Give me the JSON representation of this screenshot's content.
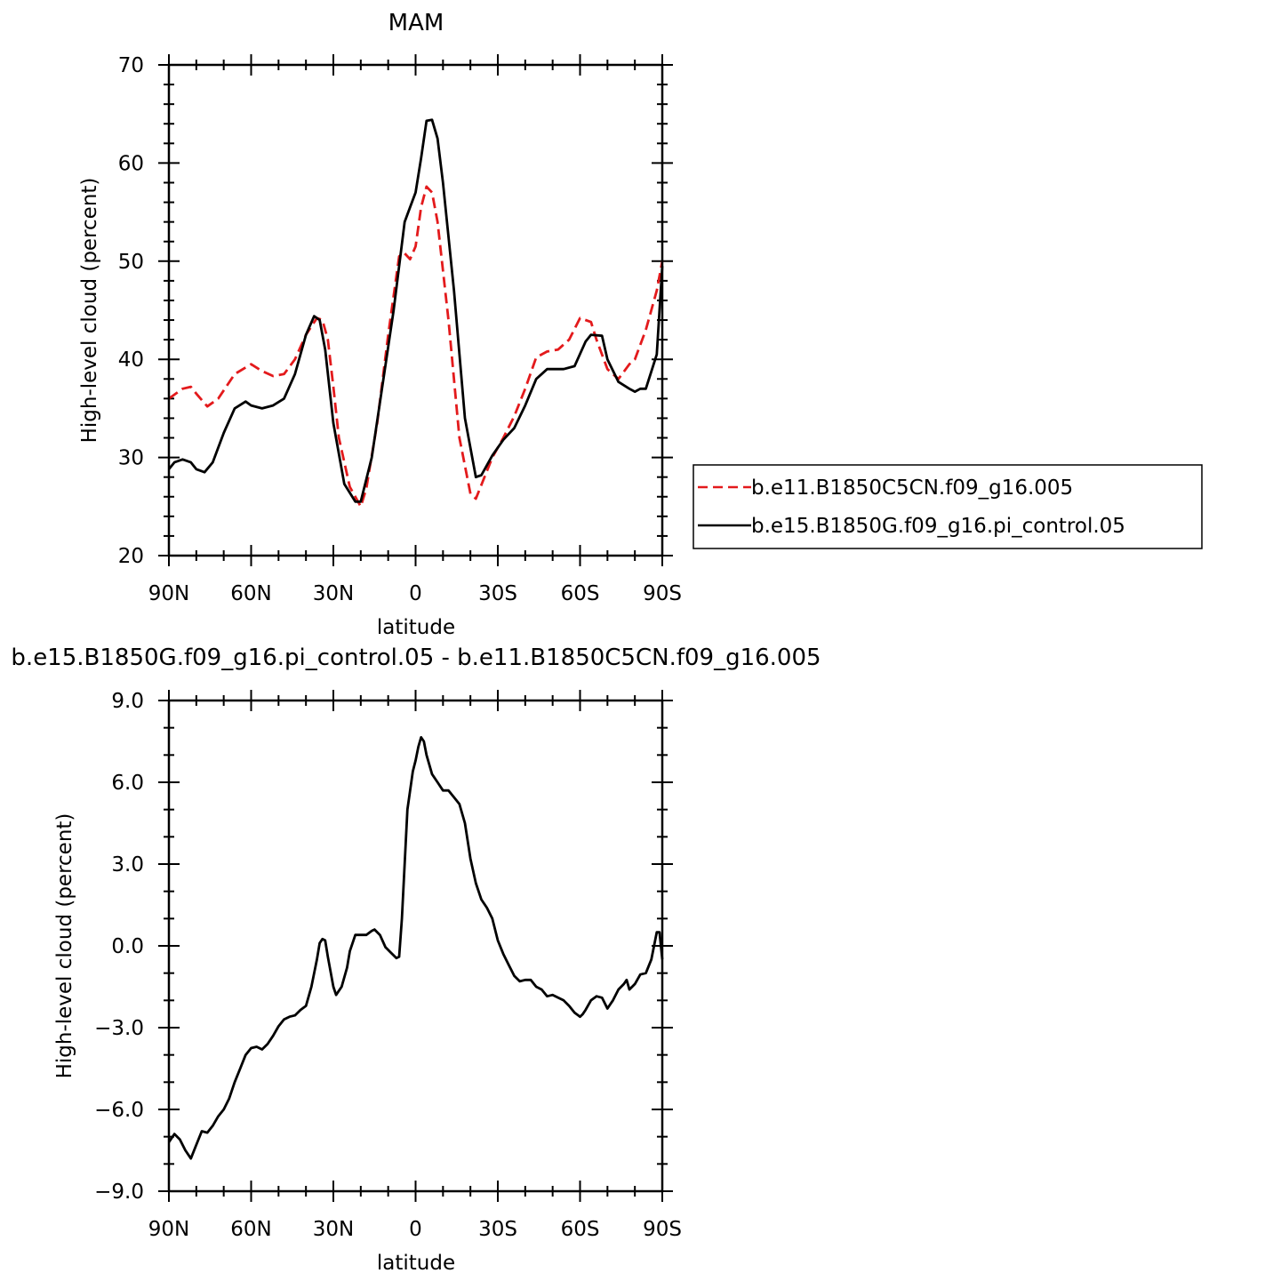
{
  "chart_data": [
    {
      "type": "line",
      "title": "MAM",
      "xlabel": "latitude",
      "ylabel": "High-level cloud (percent)",
      "xlim": [
        -90,
        90
      ],
      "ylim": [
        20,
        70
      ],
      "xticks": [
        -90,
        -60,
        -30,
        0,
        30,
        60,
        90
      ],
      "xtick_labels": [
        "90N",
        "60N",
        "30N",
        "0",
        "30S",
        "60S",
        "90S"
      ],
      "yticks": [
        20,
        30,
        40,
        50,
        60,
        70
      ],
      "ytick_labels": [
        "20",
        "30",
        "40",
        "50",
        "60",
        "70"
      ],
      "grid": false,
      "legend_position": "right",
      "series": [
        {
          "name": "b.e11.B1850C5CN.f09_g16.005",
          "color": "#e31a1c",
          "style": "dashed",
          "x": [
            -90,
            -85,
            -82,
            -80,
            -76,
            -72,
            -66,
            -60,
            -56,
            -52,
            -48,
            -44,
            -40,
            -36,
            -34,
            -32,
            -30,
            -28,
            -24,
            -20,
            -18,
            -14,
            -10,
            -6,
            -4,
            -2,
            0,
            2,
            4,
            6,
            8,
            12,
            16,
            20,
            22,
            24,
            28,
            32,
            36,
            40,
            44,
            48,
            52,
            56,
            60,
            64,
            66,
            68,
            70,
            74,
            78,
            80,
            84,
            88,
            90
          ],
          "values": [
            36,
            37,
            37.2,
            36.5,
            35.2,
            36,
            38.5,
            39.5,
            38.8,
            38.3,
            38.5,
            40,
            42.5,
            44.2,
            44,
            42,
            37.2,
            32,
            27,
            25,
            26.8,
            33.5,
            42.5,
            50.5,
            50.8,
            50.2,
            51.5,
            55.5,
            57.6,
            57,
            54,
            44,
            32,
            26.3,
            25.8,
            27.2,
            30,
            32,
            34.2,
            37,
            40.2,
            40.8,
            41,
            42,
            44.2,
            43.8,
            42,
            40.5,
            39,
            38,
            39.5,
            40,
            43,
            47,
            50
          ]
        },
        {
          "name": "b.e15.B1850G.f09_g16.pi_control.05",
          "color": "#000000",
          "style": "solid",
          "x": [
            -90,
            -88,
            -85,
            -82,
            -80,
            -77,
            -74,
            -70,
            -66,
            -62,
            -60,
            -56,
            -52,
            -48,
            -44,
            -40,
            -37,
            -35,
            -33,
            -30,
            -26,
            -22,
            -20,
            -16,
            -12,
            -8,
            -4,
            -2,
            0,
            2,
            4,
            6,
            8,
            10,
            14,
            18,
            22,
            24,
            28,
            32,
            36,
            40,
            44,
            48,
            50,
            54,
            58,
            62,
            64,
            68,
            70,
            74,
            78,
            80,
            82,
            84,
            88,
            90
          ],
          "values": [
            28.8,
            29.5,
            29.8,
            29.5,
            28.8,
            28.5,
            29.5,
            32.5,
            35,
            35.7,
            35.3,
            35,
            35.3,
            36,
            38.5,
            42.5,
            44.4,
            44,
            41,
            33.5,
            27.3,
            25.5,
            25.5,
            30,
            37.5,
            45,
            54,
            55.5,
            57,
            60.5,
            64.3,
            64.4,
            62.5,
            58,
            47,
            34,
            28,
            28.2,
            30.2,
            31.8,
            33,
            35.3,
            38,
            39,
            39,
            39,
            39.3,
            41.8,
            42.5,
            42.4,
            40,
            37.7,
            37,
            36.7,
            37,
            37,
            40.5,
            49.5
          ]
        }
      ]
    },
    {
      "type": "line",
      "title": "b.e15.B1850G.f09_g16.pi_control.05 - b.e11.B1850C5CN.f09_g16.005",
      "xlabel": "latitude",
      "ylabel": "High-level cloud (percent)",
      "xlim": [
        -90,
        90
      ],
      "ylim": [
        -9,
        9
      ],
      "xticks": [
        -90,
        -60,
        -30,
        0,
        30,
        60,
        90
      ],
      "xtick_labels": [
        "90N",
        "60N",
        "30N",
        "0",
        "30S",
        "60S",
        "90S"
      ],
      "yticks": [
        -9,
        -6,
        -3,
        0,
        3,
        6,
        9
      ],
      "ytick_labels": [
        "−9.0",
        "−6.0",
        "−3.0",
        "0.0",
        "3.0",
        "6.0",
        "9.0"
      ],
      "grid": false,
      "series": [
        {
          "color": "#000000",
          "style": "solid",
          "x": [
            -90,
            -88,
            -86,
            -84,
            -82,
            -80,
            -78,
            -76,
            -74,
            -72,
            -70,
            -68,
            -66,
            -64,
            -62,
            -60,
            -58,
            -56,
            -54,
            -52,
            -50,
            -48,
            -46,
            -44,
            -42,
            -40,
            -38,
            -36,
            -35,
            -34,
            -33,
            -32,
            -30,
            -29,
            -27,
            -25,
            -24,
            -22,
            -20,
            -18,
            -16,
            -15,
            -13,
            -11,
            -10,
            -9,
            -7,
            -6,
            -5,
            -3,
            -1,
            0,
            1,
            2,
            3,
            4,
            6,
            8,
            10,
            12,
            14,
            16,
            18,
            20,
            22,
            24,
            26,
            28,
            30,
            32,
            34,
            36,
            38,
            40,
            42,
            44,
            46,
            48,
            50,
            52,
            54,
            56,
            58,
            60,
            61,
            62,
            64,
            66,
            68,
            70,
            71,
            72,
            74,
            76,
            77,
            78,
            80,
            82,
            84,
            86,
            88,
            89,
            90
          ],
          "values": [
            -7.2,
            -6.9,
            -7.1,
            -7.5,
            -7.8,
            -7.3,
            -6.8,
            -6.85,
            -6.6,
            -6.25,
            -6,
            -5.6,
            -5,
            -4.5,
            -4,
            -3.75,
            -3.7,
            -3.8,
            -3.6,
            -3.3,
            -2.95,
            -2.7,
            -2.6,
            -2.55,
            -2.35,
            -2.2,
            -1.5,
            -0.5,
            0.1,
            0.25,
            0.2,
            -0.4,
            -1.5,
            -1.8,
            -1.5,
            -0.8,
            -0.2,
            0.4,
            0.4,
            0.4,
            0.55,
            0.6,
            0.4,
            -0.05,
            -0.15,
            -0.25,
            -0.45,
            -0.4,
            1,
            5,
            6.4,
            6.8,
            7.3,
            7.65,
            7.5,
            7,
            6.3,
            6,
            5.7,
            5.7,
            5.45,
            5.2,
            4.5,
            3.2,
            2.3,
            1.7,
            1.4,
            1,
            0.2,
            -0.3,
            -0.7,
            -1.1,
            -1.3,
            -1.25,
            -1.25,
            -1.5,
            -1.6,
            -1.85,
            -1.8,
            -1.9,
            -2,
            -2.2,
            -2.45,
            -2.6,
            -2.5,
            -2.35,
            -2,
            -1.85,
            -1.9,
            -2.3,
            -2.15,
            -2,
            -1.6,
            -1.4,
            -1.25,
            -1.6,
            -1.4,
            -1.05,
            -1,
            -0.5,
            0.5,
            0.5,
            -0.5
          ]
        }
      ]
    }
  ]
}
